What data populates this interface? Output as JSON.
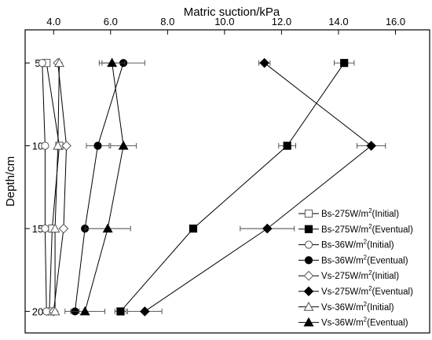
{
  "chart_data": {
    "type": "line",
    "xlabel": "Matric suction/kPa",
    "ylabel": "Depth/cm",
    "x_axis_position": "top",
    "y_axis_inverted": true,
    "xlim": [
      3.0,
      17.2
    ],
    "ylim": [
      3.0,
      21.3
    ],
    "xticks": [
      4.0,
      6.0,
      8.0,
      10.0,
      12.0,
      14.0,
      16.0
    ],
    "xtick_labels": [
      "4.0",
      "6.0",
      "8.0",
      "10.0",
      "12.0",
      "14.0",
      "16.0"
    ],
    "yticks": [
      5,
      10,
      15,
      20
    ],
    "ytick_labels": [
      "5",
      "10",
      "15",
      "20"
    ],
    "grid": false,
    "legend_position": "bottom-right",
    "series": [
      {
        "name_prefix": "Bs-275W/m",
        "name_sup": "2",
        "name_suffix": "(Initial)",
        "marker": "square-open",
        "x": [
          3.75,
          4.2,
          3.95,
          3.85
        ],
        "y": [
          5,
          10,
          15,
          20
        ],
        "err": [
          0,
          0,
          0,
          0
        ]
      },
      {
        "name_prefix": "Bs-275W/m",
        "name_sup": "2",
        "name_suffix": "(Eventual)",
        "marker": "square",
        "x": [
          14.2,
          12.2,
          8.9,
          6.35
        ],
        "y": [
          5,
          10,
          15,
          20
        ],
        "err": [
          0.35,
          0.3,
          0,
          0.2
        ]
      },
      {
        "name_prefix": "Bs-36W/m",
        "name_sup": "2",
        "name_suffix": "(Initial)",
        "marker": "circle-open",
        "x": [
          3.6,
          3.7,
          3.7,
          3.75
        ],
        "y": [
          5,
          10,
          15,
          20
        ],
        "err": [
          0,
          0,
          0,
          0
        ]
      },
      {
        "name_prefix": "Bs-36W/m",
        "name_sup": "2",
        "name_suffix": "(Eventual)",
        "marker": "circle",
        "x": [
          6.45,
          5.55,
          5.1,
          4.75
        ],
        "y": [
          5,
          10,
          15,
          20
        ],
        "err": [
          0.75,
          0.4,
          0,
          0.15
        ]
      },
      {
        "name_prefix": "Vs-275W/m",
        "name_sup": "2",
        "name_suffix": "(Initial)",
        "marker": "diamond-open",
        "x": [
          4.15,
          4.45,
          4.35,
          4.0
        ],
        "y": [
          5,
          10,
          15,
          20
        ],
        "err": [
          0,
          0,
          0,
          0
        ]
      },
      {
        "name_prefix": "Vs-275W/m",
        "name_sup": "2",
        "name_suffix": "(Eventual)",
        "marker": "diamond",
        "x": [
          11.4,
          15.15,
          11.5,
          7.2
        ],
        "y": [
          5,
          10,
          15,
          20
        ],
        "err": [
          0.2,
          0.5,
          0.95,
          0.6
        ]
      },
      {
        "name_prefix": "Vs-36W/m",
        "name_sup": "2",
        "name_suffix": "(Initial)",
        "marker": "triangle-open",
        "x": [
          4.2,
          4.15,
          4.05,
          4.05
        ],
        "y": [
          5,
          10,
          15,
          20
        ],
        "err": [
          0,
          0,
          0,
          0
        ]
      },
      {
        "name_prefix": "Vs-36W/m",
        "name_sup": "2",
        "name_suffix": "(Eventual)",
        "marker": "triangle",
        "x": [
          6.05,
          6.45,
          5.9,
          5.1
        ],
        "y": [
          5,
          10,
          15,
          20
        ],
        "err": [
          0.45,
          0.45,
          0.8,
          0.7
        ]
      }
    ]
  }
}
